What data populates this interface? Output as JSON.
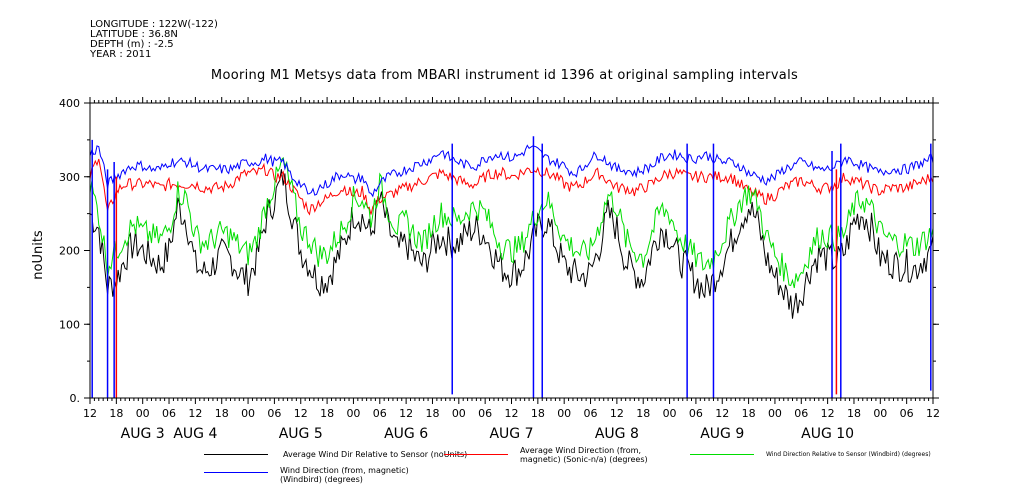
{
  "meta": {
    "longitude": "LONGITUDE : 122W(-122)",
    "latitude": "LATITUDE : 36.8N",
    "depth": "DEPTH (m) : -2.5",
    "year": "YEAR : 2011"
  },
  "chart_data": {
    "type": "line",
    "title": "Mooring M1 Metsys data from MBARI instrument id 1396 at original sampling intervals",
    "ylabel": "noUnits",
    "xlabel": "",
    "ylim": [
      0,
      400
    ],
    "yticks": [
      0,
      100,
      200,
      300,
      400
    ],
    "xlim_hours": [
      0,
      192
    ],
    "hour_tick_labels": [
      "12",
      "18",
      "00",
      "06",
      "12",
      "18",
      "00",
      "06",
      "12",
      "18",
      "00",
      "06",
      "12",
      "18",
      "00",
      "06",
      "12",
      "18",
      "00",
      "06",
      "12",
      "18",
      "00",
      "06",
      "12",
      "18",
      "00",
      "06",
      "12",
      "18",
      "00",
      "06",
      "12"
    ],
    "day_labels": [
      {
        "label": "AUG  3",
        "hour": 12
      },
      {
        "label": "AUG  4",
        "hour": 24
      },
      {
        "label": "AUG  5",
        "hour": 48
      },
      {
        "label": "AUG  6",
        "hour": 72
      },
      {
        "label": "AUG  7",
        "hour": 96
      },
      {
        "label": "AUG  8",
        "hour": 120
      },
      {
        "label": "AUG  9",
        "hour": 144
      },
      {
        "label": "AUG 10",
        "hour": 168
      }
    ],
    "grid": false,
    "legend_position": "bottom",
    "series": [
      {
        "name": "Average Wind Dir Relative to Sensor (noUnits)",
        "color": "#000000",
        "x": [
          0,
          2,
          4,
          6,
          8,
          10,
          12,
          14,
          16,
          18,
          20,
          22,
          24,
          26,
          28,
          30,
          32,
          34,
          36,
          38,
          40,
          42,
          44,
          46,
          48,
          50,
          52,
          54,
          56,
          58,
          60,
          62,
          64,
          66,
          68,
          70,
          72,
          74,
          76,
          78,
          80,
          82,
          84,
          86,
          88,
          90,
          92,
          94,
          96,
          98,
          100,
          102,
          104,
          106,
          108,
          110,
          112,
          114,
          116,
          118,
          120,
          122,
          124,
          126,
          128,
          130,
          132,
          134,
          136,
          138,
          140,
          142,
          144,
          146,
          148,
          150,
          152,
          154,
          156,
          158,
          160,
          162,
          164,
          166,
          168,
          170,
          172,
          174,
          176,
          178,
          180,
          182,
          184,
          186,
          188,
          190,
          192
        ],
        "values": [
          250,
          230,
          150,
          160,
          190,
          210,
          200,
          190,
          180,
          200,
          260,
          240,
          180,
          170,
          180,
          195,
          190,
          170,
          160,
          190,
          240,
          270,
          300,
          250,
          200,
          180,
          160,
          160,
          185,
          210,
          250,
          245,
          220,
          270,
          230,
          200,
          210,
          190,
          180,
          205,
          220,
          210,
          210,
          225,
          230,
          220,
          195,
          175,
          170,
          175,
          200,
          230,
          240,
          210,
          180,
          170,
          165,
          170,
          205,
          250,
          230,
          185,
          170,
          160,
          200,
          230,
          220,
          190,
          175,
          160,
          145,
          160,
          185,
          210,
          240,
          260,
          240,
          190,
          165,
          145,
          125,
          140,
          175,
          195,
          190,
          185,
          200,
          240,
          250,
          230,
          190,
          185,
          180,
          180,
          175,
          190,
          200
        ]
      },
      {
        "name": "Average Wind Direction (from, magnetic) (Sonic-n/a) (degrees)",
        "color": "#ff0000",
        "x": [
          0,
          2,
          4,
          6,
          8,
          10,
          12,
          14,
          16,
          18,
          20,
          22,
          24,
          26,
          28,
          30,
          32,
          34,
          36,
          38,
          40,
          42,
          44,
          46,
          48,
          50,
          52,
          54,
          56,
          58,
          60,
          62,
          64,
          66,
          68,
          70,
          72,
          74,
          76,
          78,
          80,
          82,
          84,
          86,
          88,
          90,
          92,
          94,
          96,
          98,
          100,
          102,
          104,
          106,
          108,
          110,
          112,
          114,
          116,
          118,
          120,
          122,
          124,
          126,
          128,
          130,
          132,
          134,
          136,
          138,
          140,
          142,
          144,
          146,
          148,
          150,
          152,
          154,
          156,
          158,
          160,
          162,
          164,
          166,
          168,
          170,
          172,
          174,
          176,
          178,
          180,
          182,
          184,
          186,
          188,
          190,
          192
        ],
        "values": [
          300,
          330,
          250,
          280,
          290,
          290,
          290,
          290,
          285,
          290,
          290,
          290,
          290,
          285,
          285,
          285,
          290,
          300,
          305,
          305,
          310,
          300,
          300,
          285,
          270,
          255,
          265,
          270,
          280,
          285,
          275,
          280,
          255,
          270,
          275,
          280,
          285,
          290,
          295,
          300,
          305,
          300,
          295,
          290,
          290,
          300,
          305,
          305,
          300,
          305,
          310,
          310,
          305,
          300,
          290,
          285,
          290,
          300,
          305,
          295,
          285,
          285,
          280,
          285,
          290,
          300,
          305,
          305,
          300,
          300,
          300,
          300,
          300,
          300,
          290,
          280,
          275,
          270,
          275,
          285,
          290,
          295,
          290,
          285,
          285,
          290,
          300,
          295,
          290,
          285,
          280,
          285,
          285,
          285,
          290,
          295,
          300
        ]
      },
      {
        "name": "Wind Direction Relative to Sensor (Windbird) (degrees)",
        "color": "#00dd00",
        "x": [
          0,
          2,
          4,
          6,
          8,
          10,
          12,
          14,
          16,
          18,
          20,
          22,
          24,
          26,
          28,
          30,
          32,
          34,
          36,
          38,
          40,
          42,
          44,
          46,
          48,
          50,
          52,
          54,
          56,
          58,
          60,
          62,
          64,
          66,
          68,
          70,
          72,
          74,
          76,
          78,
          80,
          82,
          84,
          86,
          88,
          90,
          92,
          94,
          96,
          98,
          100,
          102,
          104,
          106,
          108,
          110,
          112,
          114,
          116,
          118,
          120,
          122,
          124,
          126,
          128,
          130,
          132,
          134,
          136,
          138,
          140,
          142,
          144,
          146,
          148,
          150,
          152,
          154,
          156,
          158,
          160,
          162,
          164,
          166,
          168,
          170,
          172,
          174,
          176,
          178,
          180,
          182,
          184,
          186,
          188,
          190,
          192
        ],
        "values": [
          290,
          250,
          180,
          200,
          220,
          235,
          225,
          220,
          215,
          230,
          280,
          270,
          220,
          210,
          215,
          225,
          220,
          205,
          195,
          215,
          260,
          290,
          320,
          280,
          230,
          215,
          195,
          195,
          215,
          235,
          270,
          270,
          245,
          290,
          255,
          230,
          240,
          220,
          210,
          235,
          250,
          245,
          240,
          255,
          260,
          250,
          225,
          205,
          200,
          205,
          230,
          255,
          270,
          245,
          215,
          205,
          195,
          200,
          235,
          275,
          260,
          215,
          200,
          190,
          225,
          255,
          250,
          220,
          205,
          190,
          180,
          190,
          215,
          240,
          265,
          280,
          265,
          220,
          195,
          175,
          160,
          170,
          200,
          220,
          220,
          215,
          225,
          260,
          270,
          255,
          225,
          215,
          210,
          210,
          205,
          215,
          225
        ]
      },
      {
        "name": "Wind Direction (from, magnetic) (Windbird) (degrees)",
        "color": "#0000ff",
        "x": [
          0,
          2,
          4,
          6,
          8,
          10,
          12,
          14,
          16,
          18,
          20,
          22,
          24,
          26,
          28,
          30,
          32,
          34,
          36,
          38,
          40,
          42,
          44,
          46,
          48,
          50,
          52,
          54,
          56,
          58,
          60,
          62,
          64,
          66,
          68,
          70,
          72,
          74,
          76,
          78,
          80,
          82,
          84,
          86,
          88,
          90,
          92,
          94,
          96,
          98,
          100,
          102,
          104,
          106,
          108,
          110,
          112,
          114,
          116,
          118,
          120,
          122,
          124,
          126,
          128,
          130,
          132,
          134,
          136,
          138,
          140,
          142,
          144,
          146,
          148,
          150,
          152,
          154,
          156,
          158,
          160,
          162,
          164,
          166,
          168,
          170,
          172,
          174,
          176,
          178,
          180,
          182,
          184,
          186,
          188,
          190,
          192
        ],
        "values": [
          330,
          340,
          290,
          300,
          310,
          315,
          315,
          310,
          310,
          320,
          320,
          320,
          315,
          310,
          310,
          310,
          310,
          315,
          320,
          320,
          325,
          320,
          320,
          300,
          290,
          275,
          285,
          290,
          300,
          305,
          295,
          300,
          275,
          290,
          300,
          305,
          310,
          315,
          320,
          325,
          335,
          325,
          320,
          315,
          315,
          325,
          330,
          330,
          325,
          330,
          340,
          335,
          325,
          320,
          315,
          305,
          310,
          325,
          330,
          320,
          310,
          310,
          305,
          310,
          315,
          325,
          330,
          330,
          325,
          325,
          330,
          325,
          320,
          320,
          315,
          305,
          300,
          295,
          300,
          310,
          315,
          320,
          315,
          310,
          310,
          315,
          325,
          320,
          315,
          310,
          305,
          310,
          310,
          310,
          315,
          320,
          325
        ]
      }
    ],
    "spikes": [
      {
        "series": 3,
        "x": 0.5,
        "to": 0
      },
      {
        "series": 3,
        "x": 4,
        "to": 0
      },
      {
        "series": 3,
        "x": 5.5,
        "to": 0
      },
      {
        "series": 1,
        "x": 6,
        "to": 0
      },
      {
        "series": 3,
        "x": 82.5,
        "to": 5
      },
      {
        "series": 3,
        "x": 101,
        "to": 0
      },
      {
        "series": 3,
        "x": 103,
        "to": 0
      },
      {
        "series": 3,
        "x": 136,
        "to": 0
      },
      {
        "series": 3,
        "x": 142,
        "to": 0
      },
      {
        "series": 3,
        "x": 169,
        "to": 0
      },
      {
        "series": 1,
        "x": 170,
        "to": 5
      },
      {
        "series": 3,
        "x": 171,
        "to": 0
      },
      {
        "series": 3,
        "x": 191.5,
        "to": 10
      }
    ]
  },
  "legend": [
    {
      "text": "Average Wind Dir Relative to Sensor (noUnits)"
    },
    {
      "text": "Average Wind Direction (from, magnetic) (Sonic-n/a) (degrees)"
    },
    {
      "text": "Wind Direction Relative to Sensor (Windbird) (degrees)"
    },
    {
      "text": "Wind Direction (from, magnetic) (Windbird) (degrees)"
    }
  ]
}
